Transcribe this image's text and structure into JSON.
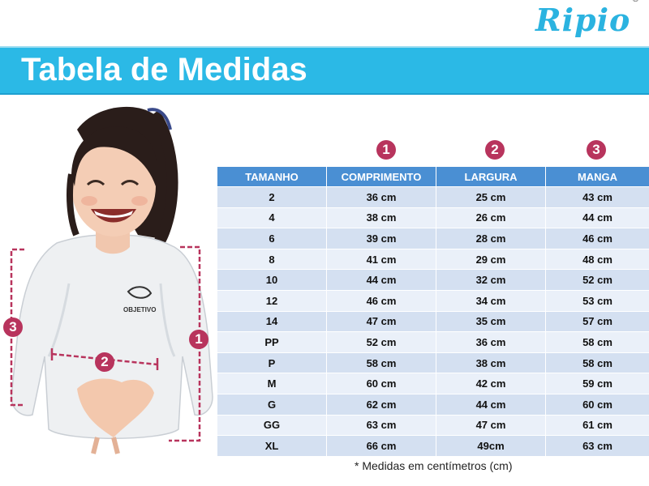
{
  "logo": {
    "text": "Ripio",
    "mark": "®"
  },
  "banner": {
    "title": "Tabela de Medidas"
  },
  "badges": {
    "one": "1",
    "two": "2",
    "three": "3"
  },
  "photo": {
    "shirt_text": "OBJETIVO"
  },
  "table": {
    "headers": [
      "TAMANHO",
      "COMPRIMENTO",
      "LARGURA",
      "MANGA"
    ],
    "rows": [
      [
        "2",
        "36 cm",
        "25 cm",
        "43 cm"
      ],
      [
        "4",
        "38 cm",
        "26 cm",
        "44 cm"
      ],
      [
        "6",
        "39 cm",
        "28 cm",
        "46 cm"
      ],
      [
        "8",
        "41 cm",
        "29 cm",
        "48 cm"
      ],
      [
        "10",
        "44 cm",
        "32 cm",
        "52 cm"
      ],
      [
        "12",
        "46 cm",
        "34 cm",
        "53 cm"
      ],
      [
        "14",
        "47 cm",
        "35 cm",
        "57 cm"
      ],
      [
        "PP",
        "52 cm",
        "36 cm",
        "58 cm"
      ],
      [
        "P",
        "58 cm",
        "38 cm",
        "58 cm"
      ],
      [
        "M",
        "60 cm",
        "42 cm",
        "59 cm"
      ],
      [
        "G",
        "62 cm",
        "44 cm",
        "60 cm"
      ],
      [
        "GG",
        "63 cm",
        "47 cm",
        "61 cm"
      ],
      [
        "XL",
        "66 cm",
        "49cm",
        "63 cm"
      ]
    ]
  },
  "note": "* Medidas em centímetros (cm)",
  "colors": {
    "accent": "#2bb9e6",
    "badge": "#b8345d",
    "header": "#4a8fd3"
  }
}
